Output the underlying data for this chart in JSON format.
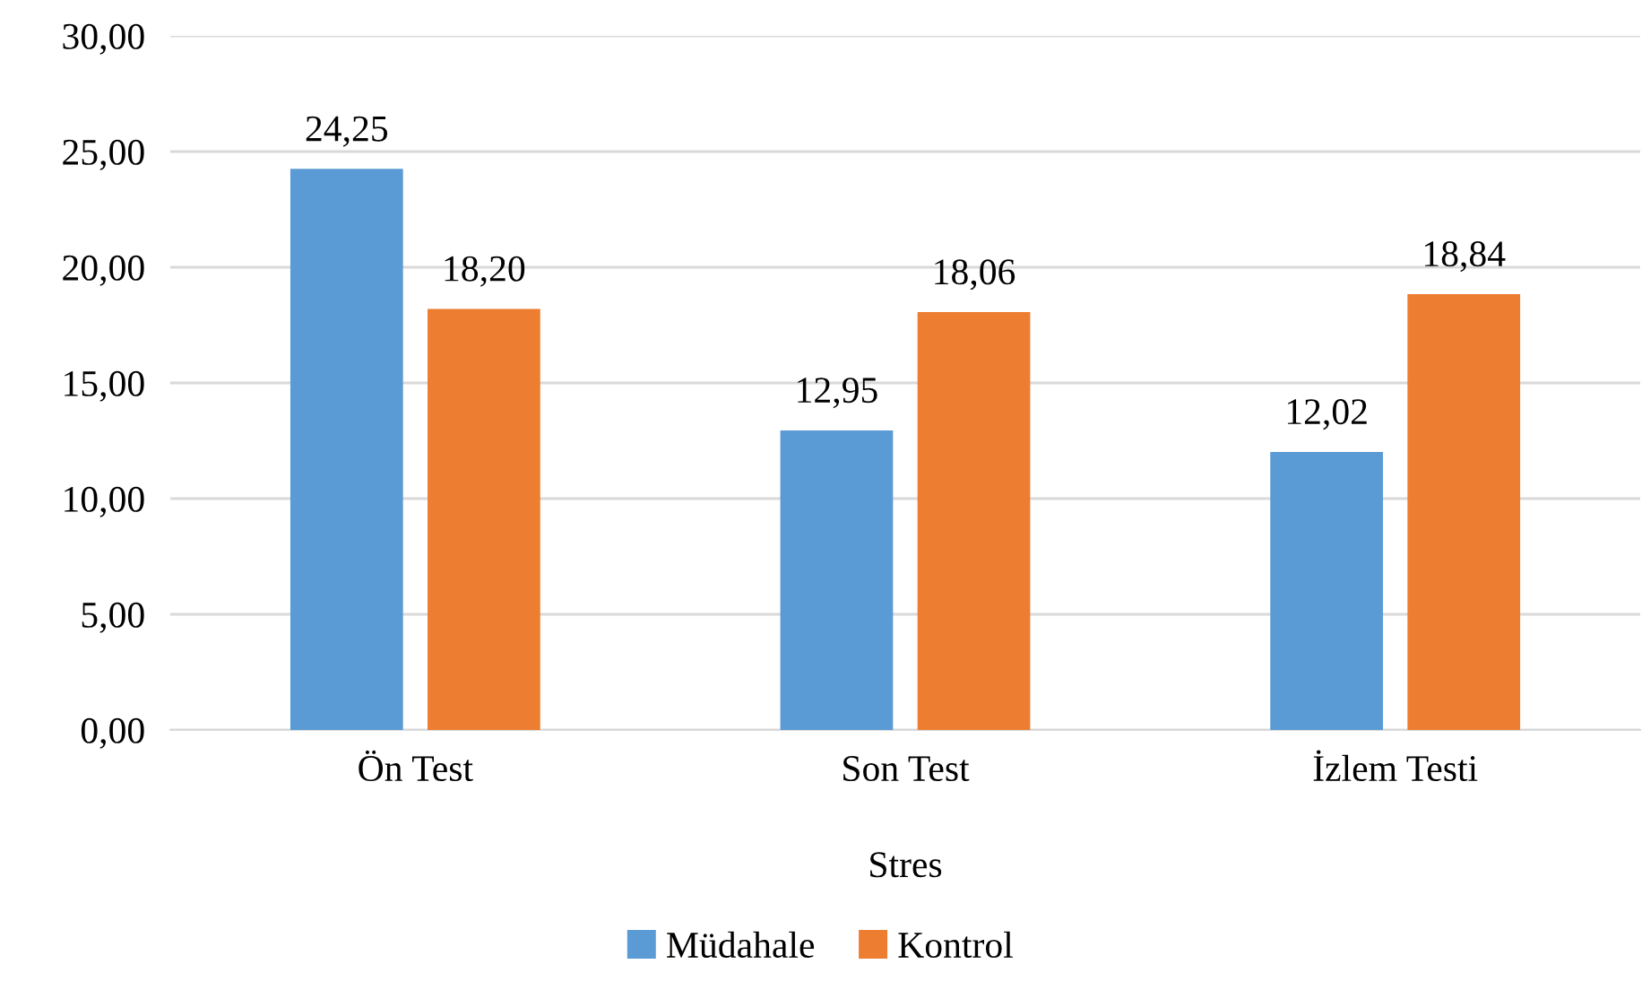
{
  "chart_data": {
    "type": "bar",
    "xlabel": "Stres",
    "categories": [
      "Ön Test",
      "Son Test",
      "İzlem Testi"
    ],
    "series": [
      {
        "name": "Müdahale",
        "color": "#5b9bd5",
        "values": [
          24.25,
          12.95,
          12.02
        ],
        "value_labels": [
          "24,25",
          "12,95",
          "12,02"
        ]
      },
      {
        "name": "Kontrol",
        "color": "#ed7d31",
        "values": [
          18.2,
          18.06,
          18.84
        ],
        "value_labels": [
          "18,20",
          "18,06",
          "18,84"
        ]
      }
    ],
    "ylim": [
      0,
      30
    ],
    "yticks": [
      {
        "value": 0,
        "label": "0,00"
      },
      {
        "value": 5,
        "label": "5,00"
      },
      {
        "value": 10,
        "label": "10,00"
      },
      {
        "value": 15,
        "label": "15,00"
      },
      {
        "value": 20,
        "label": "20,00"
      },
      {
        "value": 25,
        "label": "25,00"
      },
      {
        "value": 30,
        "label": "30,00"
      }
    ],
    "grid": "y",
    "legend": "bottom"
  }
}
